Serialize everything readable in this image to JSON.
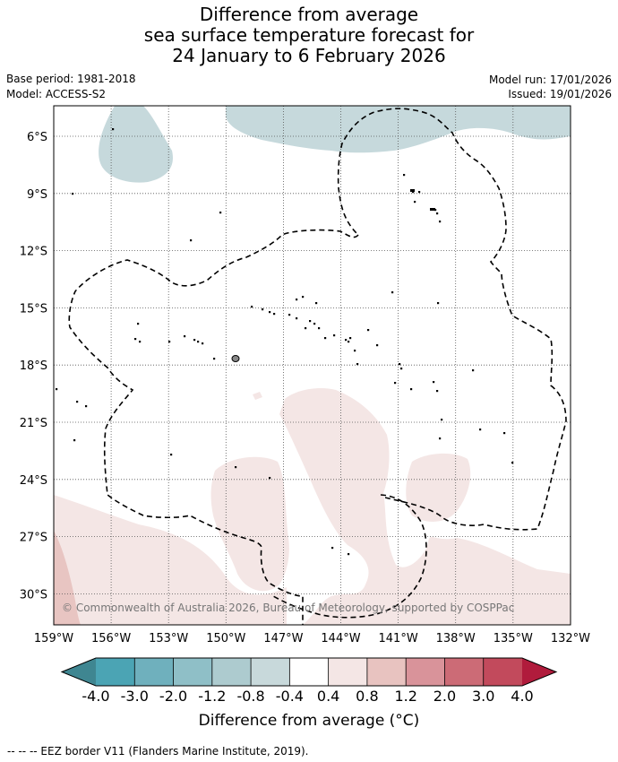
{
  "title": {
    "line1": "Difference from average",
    "line2": "sea surface temperature forecast for",
    "line3": "24 January to 6 February 2026"
  },
  "meta": {
    "base_period": "Base period: 1981-2018",
    "model": "Model: ACCESS-S2",
    "model_run": "Model run: 17/01/2026",
    "issued": "Issued: 19/01/2026"
  },
  "map": {
    "lat_labels": [
      "6°S",
      "9°S",
      "12°S",
      "15°S",
      "18°S",
      "21°S",
      "24°S",
      "27°S",
      "30°S"
    ],
    "lon_labels": [
      "159°W",
      "156°W",
      "153°W",
      "150°W",
      "147°W",
      "144°W",
      "141°W",
      "138°W",
      "135°W",
      "132°W"
    ],
    "copyright": "© Commonwealth of Australia 2026, Bureau of Meteorology, supported by COSPPac"
  },
  "colorbar": {
    "ticks": [
      "-4.0",
      "-3.0",
      "-2.0",
      "-1.2",
      "-0.8",
      "-0.4",
      "0.4",
      "0.8",
      "1.2",
      "2.0",
      "3.0",
      "4.0"
    ],
    "colors": [
      "#4ba4b4",
      "#6fb0bd",
      "#8fbfc7",
      "#adcbcf",
      "#c8d9db",
      "#ffffff",
      "#f4e6e5",
      "#e8c3c0",
      "#d9939a",
      "#cc6b76",
      "#c24a5c"
    ],
    "low_color": "#3f8691",
    "high_color": "#b01b3c",
    "label": "Difference from average (°C)"
  },
  "footer": "-- -- -- EEZ border V11 (Flanders Marine Institute, 2019)."
}
